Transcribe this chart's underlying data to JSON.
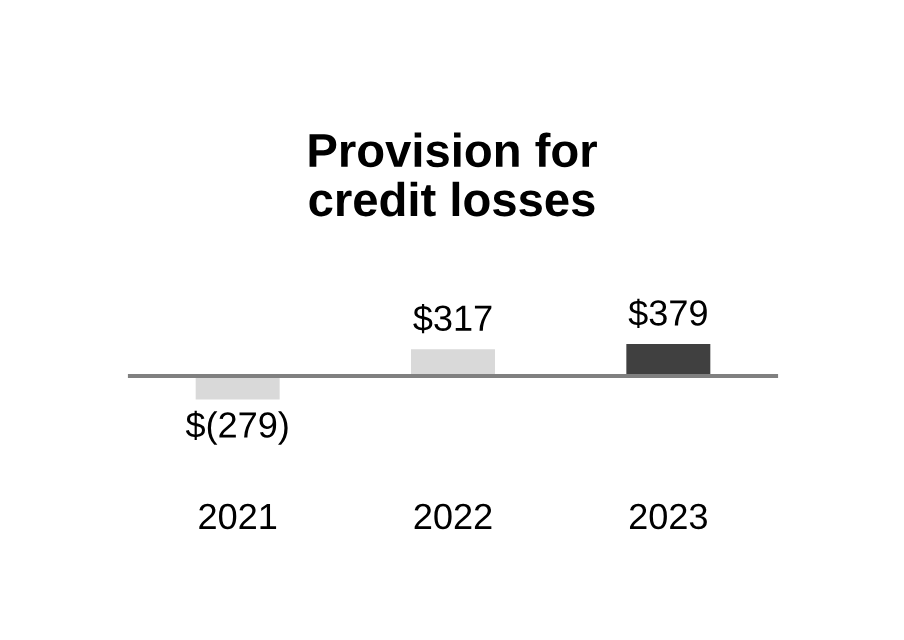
{
  "chart_data": {
    "type": "bar",
    "title": "Provision for\ncredit losses",
    "categories": [
      "2021",
      "2022",
      "2023"
    ],
    "values": [
      -279,
      317,
      379
    ],
    "colors": [
      "#d9d9d9",
      "#d9d9d9",
      "#404040"
    ],
    "value_labels": [
      "$(279)",
      "$317",
      "$379"
    ],
    "grid": false,
    "legend": false
  }
}
